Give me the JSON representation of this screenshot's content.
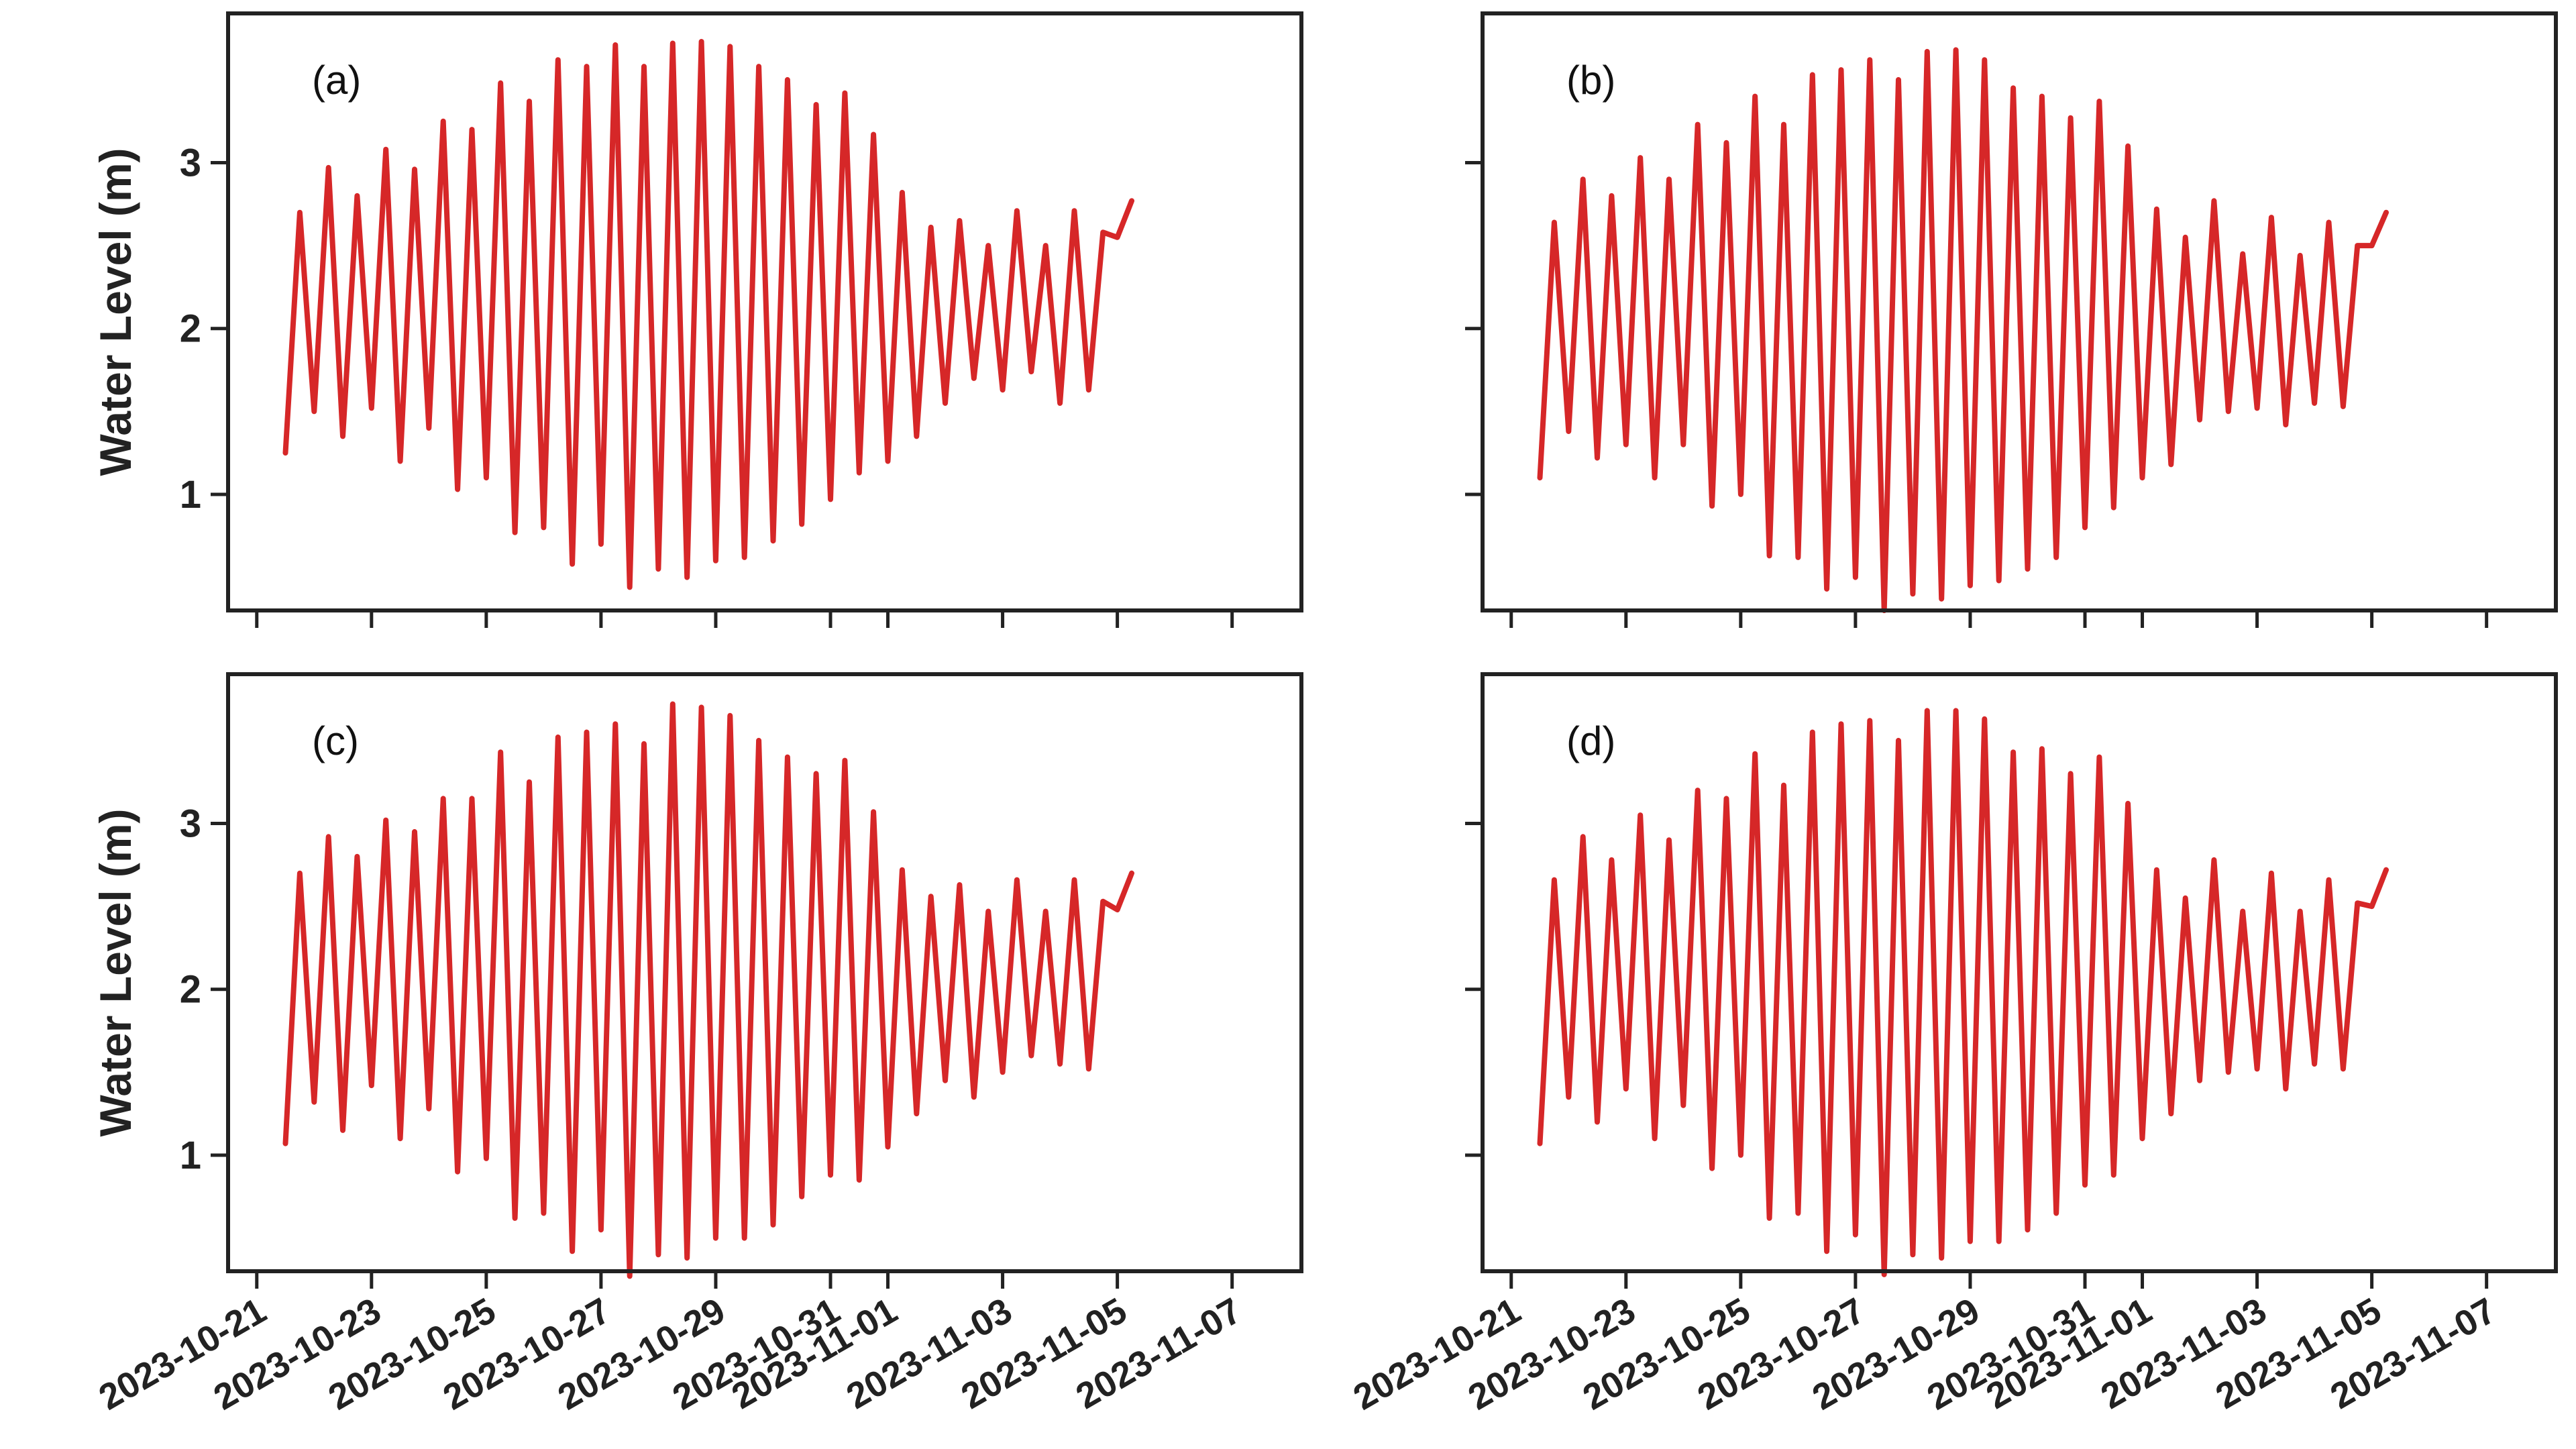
{
  "figure": {
    "colors": {
      "series": "#d62728",
      "axes": "#222222"
    },
    "ylabel": "Water Level (m)"
  },
  "chart_data": [
    {
      "panel": "(a)",
      "type": "line",
      "title": "",
      "xlabel": "",
      "ylabel": "Water Level (m)",
      "xlim": [
        "2023-10-20T12:00",
        "2023-11-08T05:00"
      ],
      "ylim": [
        0.3,
        3.9
      ],
      "x_ticks": [
        "2023-10-21",
        "2023-10-23",
        "2023-10-25",
        "2023-10-27",
        "2023-10-29",
        "2023-10-31",
        "2023-11-01",
        "2023-11-03",
        "2023-11-05",
        "2023-11-07"
      ],
      "y_ticks": [
        1,
        2,
        3
      ],
      "y_tick_labels": [
        "1",
        "2",
        "3"
      ],
      "series": [
        {
          "name": "Water Level",
          "start": "2023-10-21T12:00",
          "interval_hours": 6,
          "highs": [
            2.7,
            2.97,
            2.8,
            3.08,
            2.96,
            3.25,
            3.2,
            3.48,
            3.37,
            3.62,
            3.58,
            3.71,
            3.58,
            3.72,
            3.73,
            3.7,
            3.58,
            3.5,
            3.35,
            3.42,
            3.17,
            2.82,
            2.61,
            2.65,
            2.5,
            2.71,
            2.5,
            2.71,
            2.58,
            2.77
          ],
          "lows": [
            1.25,
            1.5,
            1.35,
            1.52,
            1.2,
            1.4,
            1.03,
            1.1,
            0.77,
            0.8,
            0.58,
            0.7,
            0.44,
            0.55,
            0.5,
            0.6,
            0.62,
            0.72,
            0.82,
            0.97,
            1.13,
            1.2,
            1.35,
            1.55,
            1.7,
            1.63,
            1.74,
            1.55,
            1.63,
            2.55
          ]
        }
      ]
    },
    {
      "panel": "(b)",
      "type": "line",
      "title": "",
      "xlabel": "",
      "ylabel": "",
      "xlim": [
        "2023-10-20T12:00",
        "2023-11-08T05:00"
      ],
      "ylim": [
        0.3,
        3.9
      ],
      "x_ticks": [
        "2023-10-21",
        "2023-10-23",
        "2023-10-25",
        "2023-10-27",
        "2023-10-29",
        "2023-10-31",
        "2023-11-01",
        "2023-11-03",
        "2023-11-05",
        "2023-11-07"
      ],
      "y_ticks": [
        1,
        2,
        3
      ],
      "y_tick_labels": [],
      "series": [
        {
          "name": "Water Level",
          "start": "2023-10-21T12:00",
          "interval_hours": 6,
          "highs": [
            2.64,
            2.9,
            2.8,
            3.03,
            2.9,
            3.23,
            3.12,
            3.4,
            3.23,
            3.53,
            3.56,
            3.62,
            3.5,
            3.67,
            3.68,
            3.62,
            3.45,
            3.4,
            3.27,
            3.37,
            3.1,
            2.72,
            2.55,
            2.77,
            2.45,
            2.67,
            2.44,
            2.64,
            2.5,
            2.7
          ],
          "lows": [
            1.1,
            1.38,
            1.22,
            1.3,
            1.1,
            1.3,
            0.93,
            1.0,
            0.63,
            0.62,
            0.43,
            0.5,
            0.3,
            0.4,
            0.37,
            0.45,
            0.48,
            0.55,
            0.62,
            0.8,
            0.92,
            1.1,
            1.18,
            1.45,
            1.5,
            1.52,
            1.42,
            1.55,
            1.53,
            2.5
          ]
        }
      ]
    },
    {
      "panel": "(c)",
      "type": "line",
      "title": "",
      "xlabel": "",
      "ylabel": "Water Level (m)",
      "xlim": [
        "2023-10-20T12:00",
        "2023-11-08T05:00"
      ],
      "ylim": [
        0.3,
        3.9
      ],
      "x_ticks": [
        "2023-10-21",
        "2023-10-23",
        "2023-10-25",
        "2023-10-27",
        "2023-10-29",
        "2023-10-31",
        "2023-11-01",
        "2023-11-03",
        "2023-11-05",
        "2023-11-07"
      ],
      "x_tick_labels": [
        "2023-10-21",
        "2023-10-23",
        "2023-10-25",
        "2023-10-27",
        "2023-10-29",
        "2023-10-31",
        "2023-11-01",
        "2023-11-03",
        "2023-11-05",
        "2023-11-07"
      ],
      "y_ticks": [
        1,
        2,
        3
      ],
      "y_tick_labels": [
        "1",
        "2",
        "3"
      ],
      "series": [
        {
          "name": "Water Level",
          "start": "2023-10-21T12:00",
          "interval_hours": 6,
          "highs": [
            2.7,
            2.92,
            2.8,
            3.02,
            2.95,
            3.15,
            3.15,
            3.43,
            3.25,
            3.52,
            3.55,
            3.6,
            3.48,
            3.72,
            3.7,
            3.65,
            3.5,
            3.4,
            3.3,
            3.38,
            3.07,
            2.72,
            2.56,
            2.63,
            2.47,
            2.66,
            2.47,
            2.66,
            2.53,
            2.7
          ],
          "lows": [
            1.07,
            1.32,
            1.15,
            1.42,
            1.1,
            1.28,
            0.9,
            0.98,
            0.62,
            0.65,
            0.42,
            0.55,
            0.27,
            0.4,
            0.38,
            0.5,
            0.5,
            0.58,
            0.75,
            0.88,
            0.85,
            1.05,
            1.25,
            1.45,
            1.35,
            1.5,
            1.6,
            1.55,
            1.52,
            2.48
          ]
        }
      ]
    },
    {
      "panel": "(d)",
      "type": "line",
      "title": "",
      "xlabel": "",
      "ylabel": "",
      "xlim": [
        "2023-10-20T12:00",
        "2023-11-08T05:00"
      ],
      "ylim": [
        0.3,
        3.9
      ],
      "x_ticks": [
        "2023-10-21",
        "2023-10-23",
        "2023-10-25",
        "2023-10-27",
        "2023-10-29",
        "2023-10-31",
        "2023-11-01",
        "2023-11-03",
        "2023-11-05",
        "2023-11-07"
      ],
      "x_tick_labels": [
        "2023-10-21",
        "2023-10-23",
        "2023-10-25",
        "2023-10-27",
        "2023-10-29",
        "2023-10-31",
        "2023-11-01",
        "2023-11-03",
        "2023-11-05",
        "2023-11-07"
      ],
      "y_ticks": [
        1,
        2,
        3
      ],
      "y_tick_labels": [],
      "series": [
        {
          "name": "Water Level",
          "start": "2023-10-21T12:00",
          "interval_hours": 6,
          "highs": [
            2.66,
            2.92,
            2.78,
            3.05,
            2.9,
            3.2,
            3.15,
            3.42,
            3.23,
            3.55,
            3.6,
            3.62,
            3.5,
            3.68,
            3.68,
            3.63,
            3.43,
            3.45,
            3.3,
            3.4,
            3.12,
            2.72,
            2.55,
            2.78,
            2.47,
            2.7,
            2.47,
            2.66,
            2.52,
            2.72
          ],
          "lows": [
            1.07,
            1.35,
            1.2,
            1.4,
            1.1,
            1.3,
            0.92,
            1.0,
            0.62,
            0.65,
            0.42,
            0.52,
            0.28,
            0.4,
            0.38,
            0.48,
            0.48,
            0.55,
            0.65,
            0.82,
            0.88,
            1.1,
            1.25,
            1.45,
            1.5,
            1.52,
            1.4,
            1.55,
            1.52,
            2.5
          ]
        }
      ]
    }
  ]
}
